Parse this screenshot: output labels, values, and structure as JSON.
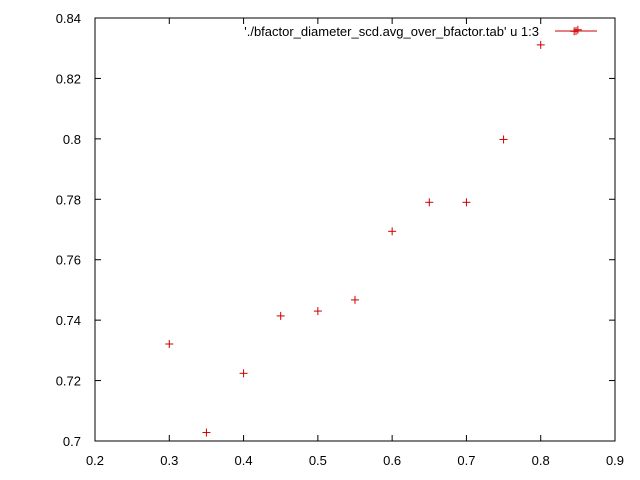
{
  "chart_data": {
    "type": "scatter",
    "marker": "+",
    "xlim": [
      0.2,
      0.9
    ],
    "ylim": [
      0.7,
      0.84
    ],
    "x_ticks": [
      0.2,
      0.3,
      0.4,
      0.5,
      0.6,
      0.7,
      0.8,
      0.9
    ],
    "y_ticks": [
      0.7,
      0.72,
      0.74,
      0.76,
      0.78,
      0.8,
      0.82,
      0.84
    ],
    "x_tick_labels": [
      "0.2",
      "0.3",
      "0.4",
      "0.5",
      "0.6",
      "0.7",
      "0.8",
      "0.9"
    ],
    "y_tick_labels": [
      "0.7",
      "0.72",
      "0.74",
      "0.76",
      "0.78",
      "0.8",
      "0.82",
      "0.84"
    ],
    "legend_placement": "top-right",
    "grid": false,
    "series": [
      {
        "name": "'./bfactor_diameter_scd.avg_over_bfactor.tab' u 1:3",
        "color": "#cc0000",
        "points": [
          {
            "x": 0.3,
            "y": 0.7321
          },
          {
            "x": 0.35,
            "y": 0.7028
          },
          {
            "x": 0.4,
            "y": 0.7224
          },
          {
            "x": 0.45,
            "y": 0.7414
          },
          {
            "x": 0.5,
            "y": 0.743
          },
          {
            "x": 0.55,
            "y": 0.7467
          },
          {
            "x": 0.6,
            "y": 0.7694
          },
          {
            "x": 0.65,
            "y": 0.779
          },
          {
            "x": 0.7,
            "y": 0.779
          },
          {
            "x": 0.75,
            "y": 0.7998
          },
          {
            "x": 0.8,
            "y": 0.8311
          },
          {
            "x": 0.845,
            "y": 0.8356
          },
          {
            "x": 0.85,
            "y": 0.8361
          }
        ]
      }
    ]
  }
}
